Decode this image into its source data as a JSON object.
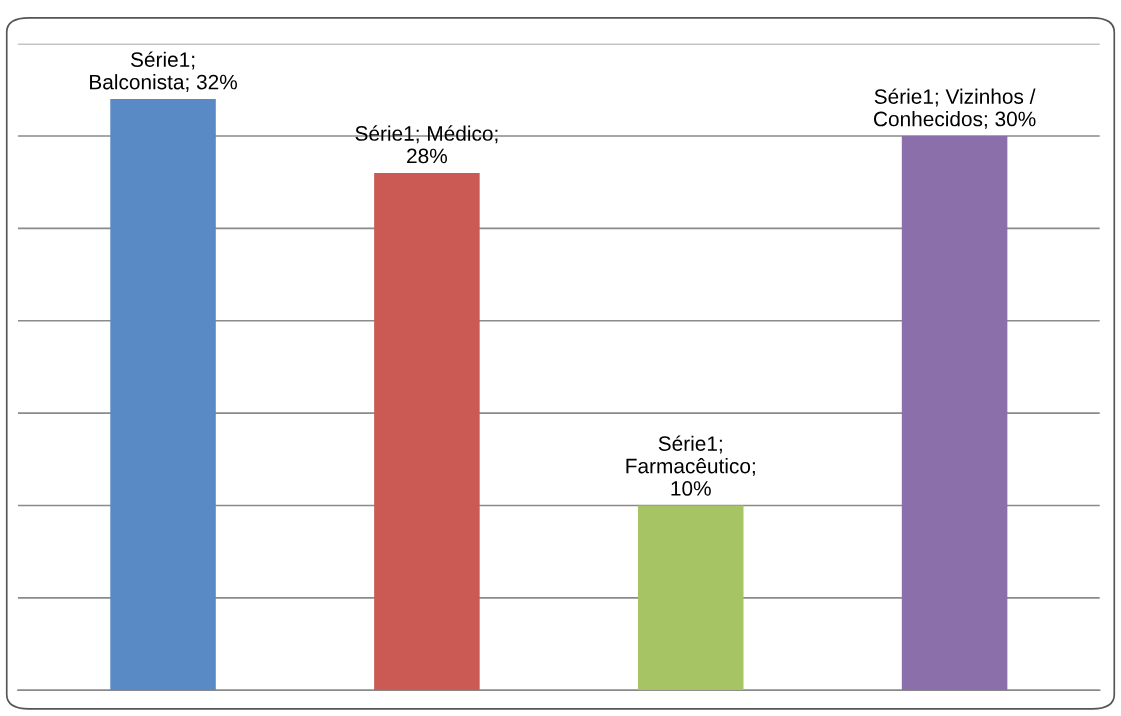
{
  "chart_data": {
    "type": "bar",
    "categories": [
      null,
      null,
      null,
      null
    ],
    "series": [
      {
        "values": [
          32,
          28,
          10,
          30
        ],
        "colors": [
          "#5a8ac6",
          "#cb5a54",
          "#a6c464",
          "#8b6fab"
        ],
        "value_labels": [
          "Série1;\nBalconista; 32%",
          "Série1; Médico;\n28%",
          "Série1;\nFarmacêutico;\n10%",
          "Série1; Vizinhos /\nConhecidos; 30%"
        ]
      }
    ],
    "ylim": [
      0,
      35
    ],
    "yticks": [
      {
        "value": 0,
        "label": null
      },
      {
        "value": 5,
        "label": null
      },
      {
        "value": 10,
        "label": null
      },
      {
        "value": 15,
        "label": null
      },
      {
        "value": 20,
        "label": null
      },
      {
        "value": 25,
        "label": null
      },
      {
        "value": 30,
        "label": null
      },
      {
        "value": 35,
        "label": null
      }
    ],
    "grid": "y",
    "legend": false
  }
}
